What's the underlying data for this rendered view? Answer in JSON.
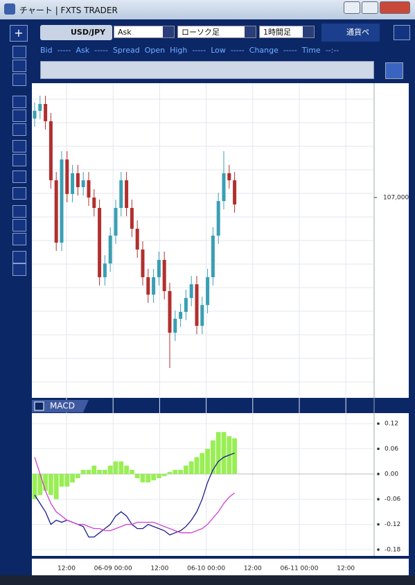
{
  "window": {
    "title": "チャート | FXTS TRADER"
  },
  "toolbar": {
    "symbol": "USD/JPY",
    "price_side": "Ask",
    "chart_type": "ローソク足",
    "timeframe": "1時間足",
    "pair_button": "通貨ペ"
  },
  "quote": [
    {
      "label": "Bid",
      "value": "-----"
    },
    {
      "label": "Ask",
      "value": "-----"
    },
    {
      "label": "Spread"
    },
    {
      "label": "Open"
    },
    {
      "label": "High",
      "value": "-----"
    },
    {
      "label": "Low",
      "value": "-----"
    },
    {
      "label": "Change",
      "value": "-----"
    },
    {
      "label": "Time",
      "value": "--:--"
    }
  ],
  "chart_data": [
    {
      "type": "candlestick",
      "up_color": "#3a9fb4",
      "down_color": "#b0302e",
      "ylim": [
        106.05,
        107.55
      ],
      "yticks": [
        {
          "value": 107,
          "label": "107,000"
        }
      ],
      "xticks": [
        "12:00",
        "06-09 00:00",
        "12:00",
        "06-10 00:00",
        "12:00",
        "06-11 00:00",
        "12:00"
      ],
      "open": [
        107.38,
        107.417,
        107.45,
        107.367,
        107.083,
        106.783,
        107.183,
        107.017,
        107.117,
        107.05,
        107.083,
        107.0,
        106.95,
        106.617,
        106.683,
        106.817,
        106.95,
        107.083,
        106.95,
        106.85,
        106.75,
        106.617,
        106.533,
        106.617,
        106.7,
        106.55,
        106.35,
        106.417,
        106.45,
        106.517,
        106.583,
        106.383,
        106.483,
        106.617,
        106.817,
        106.983,
        107.117,
        107.083
      ],
      "close": [
        107.417,
        107.45,
        107.367,
        107.083,
        106.783,
        107.183,
        107.017,
        107.117,
        107.05,
        107.083,
        107.0,
        106.95,
        106.617,
        106.683,
        106.817,
        106.95,
        107.083,
        106.95,
        106.85,
        106.75,
        106.617,
        106.533,
        106.617,
        106.7,
        106.55,
        106.35,
        106.417,
        106.45,
        106.517,
        106.583,
        106.383,
        106.483,
        106.617,
        106.817,
        106.983,
        107.117,
        107.083,
        106.967
      ],
      "high": [
        107.457,
        107.49,
        107.49,
        107.407,
        107.123,
        107.223,
        107.223,
        107.157,
        107.157,
        107.123,
        107.123,
        107.04,
        106.99,
        106.723,
        106.857,
        106.99,
        107.123,
        107.123,
        106.99,
        106.89,
        106.79,
        106.657,
        106.657,
        106.74,
        106.74,
        106.59,
        106.457,
        106.49,
        106.557,
        106.623,
        106.623,
        106.523,
        106.657,
        106.857,
        107.023,
        107.223,
        107.157,
        107.123
      ],
      "low": [
        107.34,
        107.377,
        107.327,
        107.043,
        106.743,
        106.743,
        106.977,
        106.977,
        107.01,
        107.01,
        106.96,
        106.91,
        106.577,
        106.577,
        106.643,
        106.777,
        106.91,
        106.91,
        106.81,
        106.71,
        106.577,
        106.493,
        106.493,
        106.577,
        106.51,
        106.18,
        106.31,
        106.377,
        106.41,
        106.477,
        106.343,
        106.343,
        106.443,
        106.577,
        106.777,
        106.943,
        107.043,
        106.927
      ]
    },
    {
      "type": "macd",
      "title": "MACD",
      "histogram_color": "#99ee55",
      "ylim": [
        -0.195,
        0.145
      ],
      "yticks": [
        0.12,
        0.06,
        {
          "value": 0,
          "label": "0.00"
        },
        -0.06,
        -0.12,
        -0.18
      ],
      "histogram": [
        -0.06,
        -0.05,
        -0.04,
        -0.05,
        -0.06,
        -0.03,
        -0.03,
        -0.02,
        -0.01,
        0.01,
        0.01,
        0.02,
        0.01,
        0.01,
        0.02,
        0.03,
        0.03,
        0.02,
        0.01,
        -0.01,
        -0.02,
        -0.02,
        -0.015,
        -0.01,
        -0.005,
        0.005,
        0.01,
        0.01,
        0.02,
        0.03,
        0.04,
        0.05,
        0.06,
        0.08,
        0.1,
        0.1,
        0.09,
        0.085
      ],
      "series": [
        {
          "color": "#1a1a8c",
          "values": [
            -0.05,
            -0.07,
            -0.09,
            -0.12,
            -0.11,
            -0.115,
            -0.11,
            -0.115,
            -0.12,
            -0.125,
            -0.15,
            -0.15,
            -0.14,
            -0.13,
            -0.12,
            -0.1,
            -0.09,
            -0.1,
            -0.12,
            -0.13,
            -0.13,
            -0.12,
            -0.125,
            -0.13,
            -0.135,
            -0.145,
            -0.14,
            -0.135,
            -0.125,
            -0.11,
            -0.09,
            -0.06,
            -0.02,
            0.01,
            0.03,
            0.04,
            0.045,
            0.05
          ]
        },
        {
          "color": "#d040d0",
          "values": [
            0.04,
            0,
            -0.04,
            -0.07,
            -0.09,
            -0.1,
            -0.11,
            -0.115,
            -0.12,
            -0.12,
            -0.125,
            -0.13,
            -0.13,
            -0.135,
            -0.135,
            -0.13,
            -0.125,
            -0.12,
            -0.12,
            -0.115,
            -0.115,
            -0.115,
            -0.115,
            -0.12,
            -0.125,
            -0.13,
            -0.135,
            -0.14,
            -0.14,
            -0.14,
            -0.135,
            -0.13,
            -0.12,
            -0.105,
            -0.09,
            -0.07,
            -0.055,
            -0.045
          ]
        }
      ]
    }
  ]
}
